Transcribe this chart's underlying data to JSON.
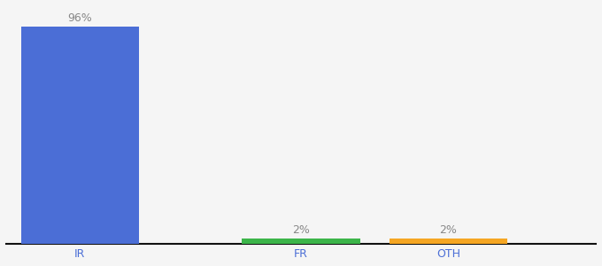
{
  "categories": [
    "IR",
    "FR",
    "OTH"
  ],
  "values": [
    96,
    2,
    2
  ],
  "bar_colors": [
    "#4B6ED6",
    "#3CB54A",
    "#F5A623"
  ],
  "labels": [
    "96%",
    "2%",
    "2%"
  ],
  "background_color": "#f5f5f5",
  "ylim": [
    0,
    105
  ],
  "label_fontsize": 9,
  "tick_fontsize": 9,
  "title_fontsize": 11,
  "x_positions": [
    1,
    4,
    6
  ],
  "bar_width": 1.6,
  "xlim": [
    0,
    8
  ]
}
